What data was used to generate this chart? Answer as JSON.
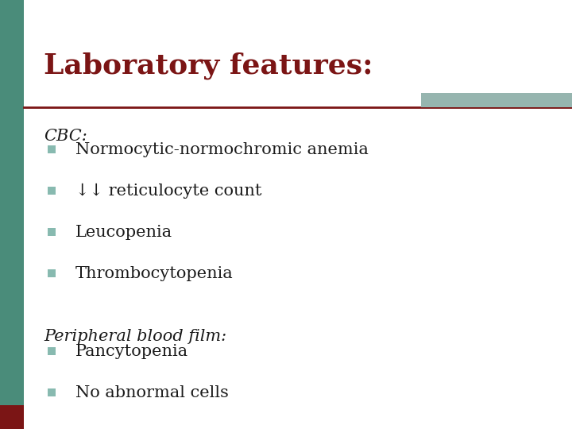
{
  "title": "Laboratory features:",
  "title_color": "#7B1515",
  "title_fontsize": 26,
  "bg_color": "#FFFFFF",
  "left_bar_color": "#4A8C7A",
  "left_bar_bottom_color": "#7B1515",
  "top_line_color": "#7B1515",
  "top_bar_color": "#96B5AF",
  "bullet_color": "#88BAB0",
  "text_color": "#1A1A1A",
  "section1_label": "CBC:",
  "section1_items": [
    "Normocytic-normochromic anemia",
    "↓↓ reticulocyte count",
    "Leucopenia",
    "Thrombocytopenia"
  ],
  "section2_label": "Peripheral blood film:",
  "section2_items": [
    "Pancytopenia",
    "No abnormal cells"
  ],
  "label_fontsize": 15,
  "item_fontsize": 15
}
